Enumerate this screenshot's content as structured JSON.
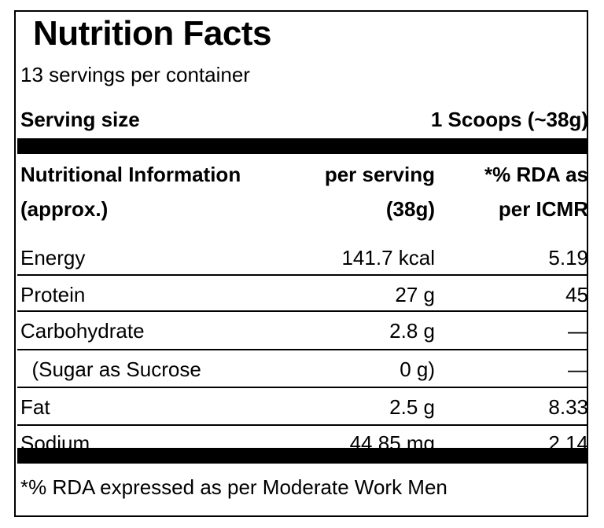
{
  "title": "Nutrition Facts",
  "servings_per_container": "13 servings per container",
  "serving": {
    "label": "Serving size",
    "value": "1 Scoops (~38g)"
  },
  "header": {
    "col1_line1": "Nutritional Information",
    "col1_line2": "(approx.)",
    "col2_line1": "per serving",
    "col2_line2": "(38g)",
    "col3_line1": "*% RDA as",
    "col3_line2": "per ICMR"
  },
  "rows": [
    {
      "name": "Energy",
      "per_serving": "141.7 kcal",
      "rda": "5.19"
    },
    {
      "name": "Protein",
      "per_serving": "27 g",
      "rda": "45"
    },
    {
      "name": "Carbohydrate",
      "per_serving": "2.8 g",
      "rda": "—"
    },
    {
      "name": "  (Sugar as Sucrose",
      "per_serving": "0 g)",
      "rda": "—"
    },
    {
      "name": "Fat",
      "per_serving": "2.5 g",
      "rda": "8.33"
    },
    {
      "name": "Sodium",
      "per_serving": "44.85 mg",
      "rda": "2.14"
    }
  ],
  "footnote": "*% RDA expressed as per Moderate Work Men"
}
